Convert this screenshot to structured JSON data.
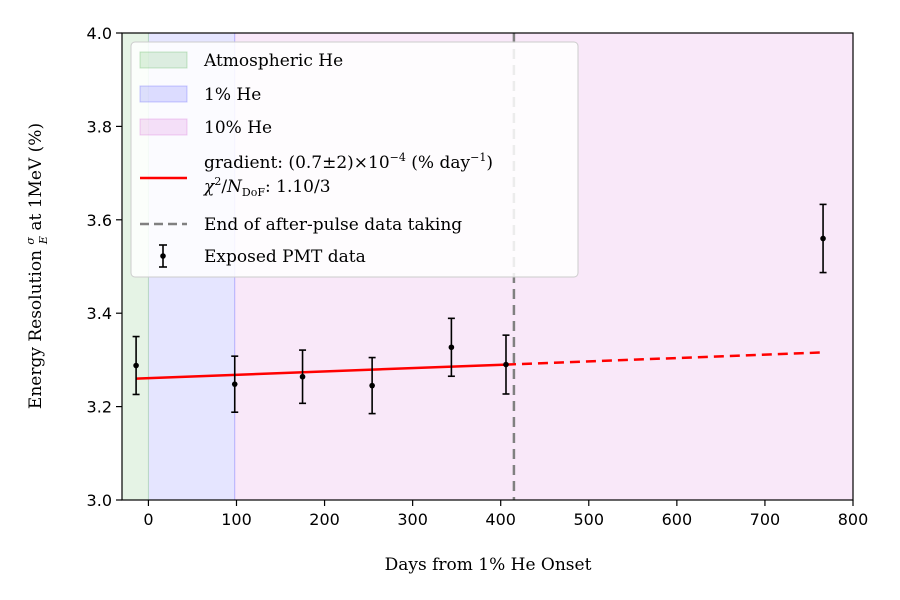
{
  "chart_data": {
    "type": "scatter",
    "title": "",
    "xlabel": "Days from 1% He Onset",
    "ylabel_prefix": "Energy Resolution ",
    "ylabel_frac_num": "σ",
    "ylabel_frac_den": "E",
    "ylabel_suffix": " at 1MeV (%)",
    "xlim": [
      -30,
      800
    ],
    "ylim": [
      3.0,
      4.0
    ],
    "xticks": [
      0,
      100,
      200,
      300,
      400,
      500,
      600,
      700,
      800
    ],
    "yticks": [
      3.0,
      3.2,
      3.4,
      3.6,
      3.8,
      4.0
    ],
    "regions": [
      {
        "name": "Atmospheric He",
        "x0": -30,
        "x1": 0,
        "color": "#2ca02c",
        "alpha": 0.12
      },
      {
        "name": "1% He",
        "x0": 0,
        "x1": 98,
        "color": "#0000ff",
        "alpha": 0.1
      },
      {
        "name": "10% He",
        "x0": 98,
        "x1": 800,
        "color": "#c41cc4",
        "alpha": 0.1
      }
    ],
    "points": {
      "name": "Exposed PMT data",
      "color": "#000000",
      "x": [
        -14,
        98,
        175,
        254,
        344,
        406,
        766
      ],
      "y": [
        3.288,
        3.248,
        3.264,
        3.245,
        3.327,
        3.29,
        3.56
      ],
      "err": [
        0.062,
        0.06,
        0.057,
        0.06,
        0.062,
        0.063,
        0.073
      ]
    },
    "fit": {
      "color": "#ff0000",
      "solid_x": [
        -14,
        406
      ],
      "solid_y": [
        3.26,
        3.29
      ],
      "dashed_x": [
        406,
        766
      ],
      "dashed_y": [
        3.29,
        3.316
      ],
      "legend_line1_a": "gradient: (0.7±2)×10",
      "legend_line1_exp": "−4",
      "legend_line1_b": " (% day",
      "legend_line1_exp2": "−1",
      "legend_line1_c": ")",
      "legend_line2_chi": "χ",
      "legend_line2_sq": "2",
      "legend_line2_slash": "/",
      "legend_line2_N": "N",
      "legend_line2_sub": "DoF",
      "legend_line2_val": ": 1.10/3"
    },
    "vline": {
      "name": "End of after-pulse data taking",
      "x": 415,
      "color": "#808080"
    },
    "legend_position": "upper-left"
  }
}
